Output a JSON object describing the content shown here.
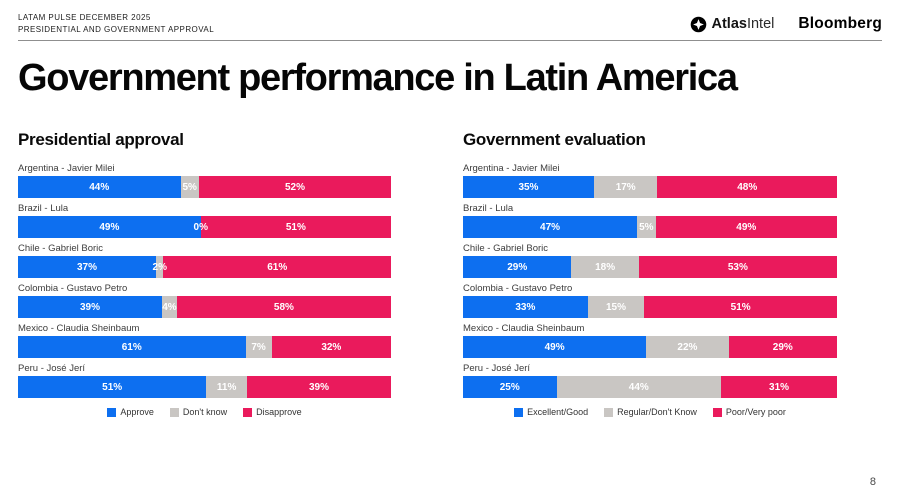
{
  "header": {
    "kicker_line1": "LATAM PULSE DECEMBER 2025",
    "kicker_line2": "PRESIDENTIAL AND GOVERNMENT APPROVAL",
    "brands": {
      "atlas_bold": "Atlas",
      "atlas_light": "Intel",
      "bloomberg": "Bloomberg"
    }
  },
  "title": "Government performance in Latin America",
  "page_number": "8",
  "colors": {
    "approve_blue": "#0D6FF0",
    "neutral_gray": "#C9C6C3",
    "disapprove_pink": "#EA1A5C"
  },
  "chart_data": [
    {
      "type": "bar",
      "stacked": true,
      "orientation": "horizontal",
      "title": "Presidential approval",
      "unit": "%",
      "xlim": [
        0,
        100
      ],
      "legend_position": "bottom",
      "categories": [
        "Argentina - Javier Milei",
        "Brazil - Lula",
        "Chile - Gabriel Boric",
        "Colombia - Gustavo Petro",
        "Mexico - Claudia Sheinbaum",
        "Peru - José Jerí"
      ],
      "series": [
        {
          "name": "Approve",
          "color": "#0D6FF0",
          "values": [
            44,
            49,
            37,
            39,
            61,
            51
          ]
        },
        {
          "name": "Don't know",
          "color": "#C9C6C3",
          "values": [
            5,
            0,
            2,
            4,
            7,
            11
          ]
        },
        {
          "name": "Disapprove",
          "color": "#EA1A5C",
          "values": [
            52,
            51,
            61,
            58,
            32,
            39
          ]
        }
      ]
    },
    {
      "type": "bar",
      "stacked": true,
      "orientation": "horizontal",
      "title": "Government evaluation",
      "unit": "%",
      "xlim": [
        0,
        100
      ],
      "legend_position": "bottom",
      "categories": [
        "Argentina - Javier Milei",
        "Brazil - Lula",
        "Chile - Gabriel Boric",
        "Colombia - Gustavo Petro",
        "Mexico - Claudia Sheinbaum",
        "Peru - José Jerí"
      ],
      "series": [
        {
          "name": "Excellent/Good",
          "color": "#0D6FF0",
          "values": [
            35,
            47,
            29,
            33,
            49,
            25
          ]
        },
        {
          "name": "Regular/Don't Know",
          "color": "#C9C6C3",
          "values": [
            17,
            5,
            18,
            15,
            22,
            44
          ]
        },
        {
          "name": "Poor/Very poor",
          "color": "#EA1A5C",
          "values": [
            48,
            49,
            53,
            51,
            29,
            31
          ]
        }
      ]
    }
  ]
}
